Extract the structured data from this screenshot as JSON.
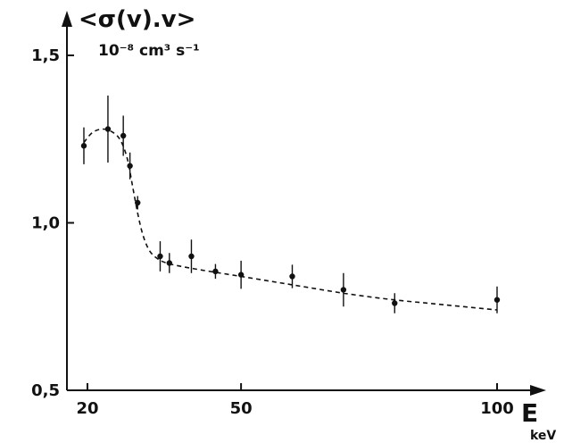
{
  "chart_data": {
    "type": "scatter",
    "y_label": "<σ(v).v>",
    "y_unit": "10⁻⁸ cm³ s⁻¹",
    "x_label": "E",
    "x_unit": "keV",
    "xlim": [
      15,
      103
    ],
    "ylim": [
      0.5,
      1.55
    ],
    "x_ticks": [
      {
        "value": 20,
        "label": "20"
      },
      {
        "value": 50,
        "label": "50"
      },
      {
        "value": 100,
        "label": "100"
      }
    ],
    "y_ticks": [
      {
        "value": 0.5,
        "label": "0,5"
      },
      {
        "value": 1.0,
        "label": "1,0"
      },
      {
        "value": 1.5,
        "label": "1,5"
      }
    ],
    "points": [
      {
        "x": 19.3,
        "y": 1.23,
        "err": 0.055
      },
      {
        "x": 24.0,
        "y": 1.28,
        "err": 0.1
      },
      {
        "x": 27.0,
        "y": 1.26,
        "err": 0.06
      },
      {
        "x": 28.3,
        "y": 1.17,
        "err": 0.04
      },
      {
        "x": 29.8,
        "y": 1.06,
        "err": 0.02
      },
      {
        "x": 34.2,
        "y": 0.9,
        "err": 0.045
      },
      {
        "x": 36.0,
        "y": 0.88,
        "err": 0.03
      },
      {
        "x": 40.3,
        "y": 0.9,
        "err": 0.05
      },
      {
        "x": 45.0,
        "y": 0.855,
        "err": 0.022
      },
      {
        "x": 50.0,
        "y": 0.845,
        "err": 0.042
      },
      {
        "x": 60.0,
        "y": 0.84,
        "err": 0.035
      },
      {
        "x": 70.0,
        "y": 0.8,
        "err": 0.05
      },
      {
        "x": 80.0,
        "y": 0.76,
        "err": 0.03
      },
      {
        "x": 100.0,
        "y": 0.77,
        "err": 0.04
      }
    ],
    "fit_curve": [
      [
        19.3,
        1.24
      ],
      [
        21.0,
        1.27
      ],
      [
        23.0,
        1.28
      ],
      [
        25.0,
        1.27
      ],
      [
        26.5,
        1.245
      ],
      [
        27.8,
        1.19
      ],
      [
        28.8,
        1.11
      ],
      [
        29.8,
        1.03
      ],
      [
        30.8,
        0.965
      ],
      [
        32.0,
        0.92
      ],
      [
        33.5,
        0.895
      ],
      [
        35.5,
        0.88
      ],
      [
        40.0,
        0.865
      ],
      [
        50.0,
        0.84
      ],
      [
        60.0,
        0.815
      ],
      [
        70.0,
        0.79
      ],
      [
        80.0,
        0.77
      ],
      [
        90.0,
        0.755
      ],
      [
        100.0,
        0.74
      ]
    ]
  }
}
